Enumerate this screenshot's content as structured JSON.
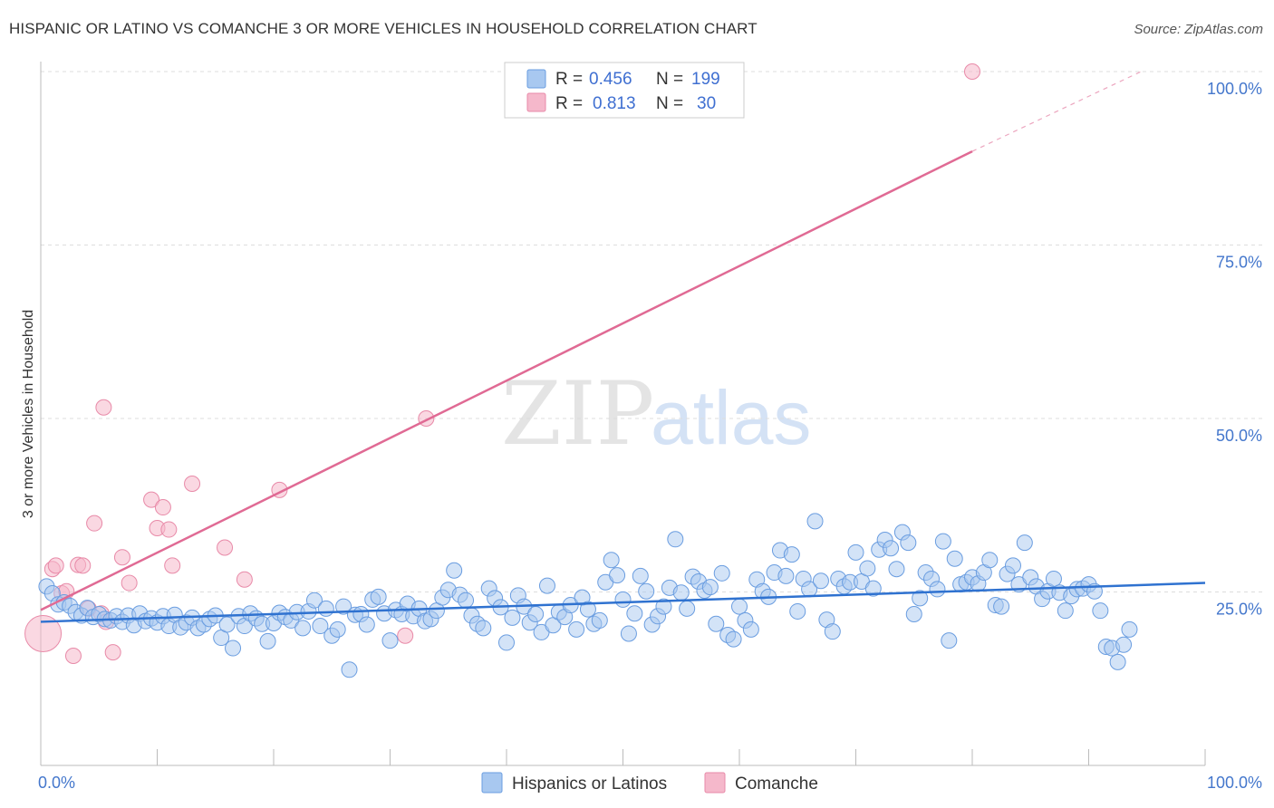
{
  "header": {
    "title": "HISPANIC OR LATINO VS COMANCHE 3 OR MORE VEHICLES IN HOUSEHOLD CORRELATION CHART",
    "source": "Source: ZipAtlas.com"
  },
  "watermark": {
    "zip": "ZIP",
    "atlas": "atlas"
  },
  "legend_top": [
    {
      "r_label": "R =",
      "r_value": "0.456",
      "n_label": "N =",
      "n_value": "199",
      "color": "#a8c8f0"
    },
    {
      "r_label": "R =",
      "r_value": "0.813",
      "n_label": "N =",
      "n_value": "30",
      "color": "#f5b8cb"
    }
  ],
  "legend_bottom": [
    {
      "label": "Hispanics or Latinos",
      "color": "#a8c8f0"
    },
    {
      "label": "Comanche",
      "color": "#f5b8cb"
    }
  ],
  "colors": {
    "blue_fill": "#a8c8f0",
    "blue_stroke": "#6a9de0",
    "blue_line": "#2f72d0",
    "pink_fill": "#f5b8cb",
    "pink_stroke": "#e88aa8",
    "pink_line": "#e06a94",
    "grid": "#dddddd",
    "axis_text": "#4477cc"
  },
  "chart_data": {
    "type": "scatter",
    "title": "HISPANIC OR LATINO VS COMANCHE 3 OR MORE VEHICLES IN HOUSEHOLD CORRELATION CHART",
    "xlabel": "",
    "ylabel": "3 or more Vehicles in Household",
    "xlim": [
      0,
      100
    ],
    "ylim": [
      0,
      100
    ],
    "x_tick_labels": [
      "0.0%",
      "100.0%"
    ],
    "y_ticks": [
      25,
      50,
      75,
      100
    ],
    "y_tick_labels": [
      "25.0%",
      "50.0%",
      "75.0%",
      "100.0%"
    ],
    "grid": true,
    "legend_placement": "top-center",
    "series": [
      {
        "name": "Hispanics or Latinos",
        "color": "#a8c8f0",
        "trend": {
          "x": [
            0,
            100
          ],
          "y": [
            20.7,
            26.3
          ]
        },
        "points": [
          [
            0.5,
            25.8
          ],
          [
            1,
            24.8
          ],
          [
            1.5,
            23.2
          ],
          [
            2,
            23.5
          ],
          [
            2.5,
            23
          ],
          [
            3,
            22.1
          ],
          [
            3.5,
            21.6
          ],
          [
            4,
            22.7
          ],
          [
            4.5,
            21.4
          ],
          [
            5,
            21.8
          ],
          [
            5.5,
            21.1
          ],
          [
            6,
            20.9
          ],
          [
            6.5,
            21.5
          ],
          [
            7,
            20.7
          ],
          [
            7.5,
            21.6
          ],
          [
            8,
            20.2
          ],
          [
            8.5,
            21.9
          ],
          [
            9,
            20.8
          ],
          [
            9.5,
            21.2
          ],
          [
            10,
            20.6
          ],
          [
            10.5,
            21.5
          ],
          [
            11,
            20.1
          ],
          [
            11.5,
            21.7
          ],
          [
            12,
            19.9
          ],
          [
            12.5,
            20.6
          ],
          [
            13,
            21.3
          ],
          [
            13.5,
            19.8
          ],
          [
            14,
            20.3
          ],
          [
            14.5,
            21.1
          ],
          [
            15,
            21.6
          ],
          [
            15.5,
            18.4
          ],
          [
            16,
            20.3
          ],
          [
            16.5,
            16.9
          ],
          [
            17,
            21.5
          ],
          [
            17.5,
            20.1
          ],
          [
            18,
            21.9
          ],
          [
            18.5,
            21.2
          ],
          [
            19,
            20.4
          ],
          [
            19.5,
            17.9
          ],
          [
            20,
            20.5
          ],
          [
            20.5,
            22
          ],
          [
            21,
            21.4
          ],
          [
            21.5,
            20.9
          ],
          [
            22,
            22.1
          ],
          [
            22.5,
            19.8
          ],
          [
            23,
            22.2
          ],
          [
            23.5,
            23.8
          ],
          [
            24,
            20.1
          ],
          [
            24.5,
            22.6
          ],
          [
            25,
            18.7
          ],
          [
            25.5,
            19.6
          ],
          [
            26,
            22.9
          ],
          [
            26.5,
            13.8
          ],
          [
            27,
            21.7
          ],
          [
            27.5,
            21.8
          ],
          [
            28,
            20.3
          ],
          [
            28.5,
            23.9
          ],
          [
            29,
            24.3
          ],
          [
            29.5,
            21.9
          ],
          [
            30,
            18
          ],
          [
            30.5,
            22.4
          ],
          [
            31,
            21.8
          ],
          [
            31.5,
            23.3
          ],
          [
            32,
            21.5
          ],
          [
            32.5,
            22.6
          ],
          [
            33,
            20.8
          ],
          [
            33.5,
            21.1
          ],
          [
            34,
            22.3
          ],
          [
            34.5,
            24.2
          ],
          [
            35,
            25.3
          ],
          [
            35.5,
            28.1
          ],
          [
            36,
            24.6
          ],
          [
            36.5,
            23.8
          ],
          [
            37,
            21.6
          ],
          [
            37.5,
            20.4
          ],
          [
            38,
            19.8
          ],
          [
            38.5,
            25.5
          ],
          [
            39,
            24.1
          ],
          [
            39.5,
            22.8
          ],
          [
            40,
            17.7
          ],
          [
            40.5,
            21.3
          ],
          [
            41,
            24.5
          ],
          [
            41.5,
            22.9
          ],
          [
            42,
            20.6
          ],
          [
            42.5,
            21.8
          ],
          [
            43,
            19.2
          ],
          [
            43.5,
            25.9
          ],
          [
            44,
            20.2
          ],
          [
            44.5,
            22.1
          ],
          [
            45,
            21.4
          ],
          [
            45.5,
            23.1
          ],
          [
            46,
            19.6
          ],
          [
            46.5,
            24.2
          ],
          [
            47,
            22.5
          ],
          [
            47.5,
            20.4
          ],
          [
            48,
            20.9
          ],
          [
            48.5,
            26.4
          ],
          [
            49,
            29.6
          ],
          [
            49.5,
            27.4
          ],
          [
            50,
            23.9
          ],
          [
            50.5,
            19
          ],
          [
            51,
            21.9
          ],
          [
            51.5,
            27.3
          ],
          [
            52,
            25.1
          ],
          [
            52.5,
            20.3
          ],
          [
            53,
            21.5
          ],
          [
            53.5,
            22.9
          ],
          [
            54,
            25.6
          ],
          [
            54.5,
            32.6
          ],
          [
            55,
            24.9
          ],
          [
            55.5,
            22.6
          ],
          [
            56,
            27.2
          ],
          [
            56.5,
            26.5
          ],
          [
            57,
            25.2
          ],
          [
            57.5,
            25.7
          ],
          [
            58,
            20.4
          ],
          [
            58.5,
            27.7
          ],
          [
            59,
            18.8
          ],
          [
            59.5,
            18.2
          ],
          [
            60,
            22.9
          ],
          [
            60.5,
            20.9
          ],
          [
            61,
            19.6
          ],
          [
            61.5,
            26.8
          ],
          [
            62,
            25.1
          ],
          [
            62.5,
            24.3
          ],
          [
            63,
            27.8
          ],
          [
            63.5,
            31
          ],
          [
            64,
            27.3
          ],
          [
            64.5,
            30.4
          ],
          [
            65,
            22.2
          ],
          [
            65.5,
            26.9
          ],
          [
            66,
            25.4
          ],
          [
            66.5,
            35.2
          ],
          [
            67,
            26.6
          ],
          [
            67.5,
            21
          ],
          [
            68,
            19.3
          ],
          [
            68.5,
            26.9
          ],
          [
            69,
            25.8
          ],
          [
            69.5,
            26.4
          ],
          [
            70,
            30.7
          ],
          [
            70.5,
            26.5
          ],
          [
            71,
            28.4
          ],
          [
            71.5,
            25.5
          ],
          [
            72,
            31.1
          ],
          [
            72.5,
            32.5
          ],
          [
            73,
            31.3
          ],
          [
            73.5,
            28.3
          ],
          [
            74,
            33.6
          ],
          [
            74.5,
            32.1
          ],
          [
            75,
            21.8
          ],
          [
            75.5,
            24.1
          ],
          [
            76,
            27.8
          ],
          [
            76.5,
            26.9
          ],
          [
            77,
            25.4
          ],
          [
            77.5,
            32.3
          ],
          [
            78,
            18
          ],
          [
            78.5,
            29.8
          ],
          [
            79,
            26.1
          ],
          [
            79.5,
            26.4
          ],
          [
            80,
            27.1
          ],
          [
            80.5,
            26.2
          ],
          [
            81,
            27.8
          ],
          [
            81.5,
            29.6
          ],
          [
            82,
            23.1
          ],
          [
            82.5,
            22.9
          ],
          [
            83,
            27.6
          ],
          [
            83.5,
            28.8
          ],
          [
            84,
            26.1
          ],
          [
            84.5,
            32.1
          ],
          [
            85,
            27.1
          ],
          [
            85.5,
            25.8
          ],
          [
            86,
            24
          ],
          [
            86.5,
            25.1
          ],
          [
            87,
            26.9
          ],
          [
            87.5,
            24.9
          ],
          [
            88,
            22.3
          ],
          [
            88.5,
            24.4
          ],
          [
            89,
            25.4
          ],
          [
            89.5,
            25.5
          ],
          [
            90,
            26.1
          ],
          [
            90.5,
            25.1
          ],
          [
            91,
            22.3
          ],
          [
            91.5,
            17.1
          ],
          [
            92,
            16.9
          ],
          [
            92.5,
            14.9
          ],
          [
            93,
            17.4
          ],
          [
            93.5,
            19.6
          ]
        ]
      },
      {
        "name": "Comanche",
        "color": "#f5b8cb",
        "trend": {
          "x": [
            0,
            80
          ],
          "y": [
            22.4,
            88.5
          ]
        },
        "trend_extension": {
          "x": [
            80,
            94.5
          ],
          "y": [
            88.5,
            100
          ]
        },
        "points": [
          [
            0.2,
            19
          ],
          [
            1,
            28.3
          ],
          [
            1.3,
            28.8
          ],
          [
            1.8,
            24.8
          ],
          [
            2.2,
            25.1
          ],
          [
            2.8,
            15.8
          ],
          [
            3.2,
            28.9
          ],
          [
            3.6,
            28.8
          ],
          [
            4.1,
            22.6
          ],
          [
            4.6,
            34.9
          ],
          [
            5.2,
            21.9
          ],
          [
            5.6,
            20.7
          ],
          [
            6.2,
            16.3
          ],
          [
            7,
            30
          ],
          [
            7.6,
            26.3
          ],
          [
            5.4,
            51.6
          ],
          [
            9.5,
            38.3
          ],
          [
            10,
            34.2
          ],
          [
            10.5,
            37.2
          ],
          [
            11,
            34
          ],
          [
            11.3,
            28.8
          ],
          [
            13,
            40.6
          ],
          [
            15.8,
            31.4
          ],
          [
            17.5,
            26.8
          ],
          [
            20.5,
            39.7
          ],
          [
            31.3,
            18.7
          ],
          [
            33.1,
            50
          ],
          [
            80,
            100
          ]
        ]
      }
    ]
  }
}
